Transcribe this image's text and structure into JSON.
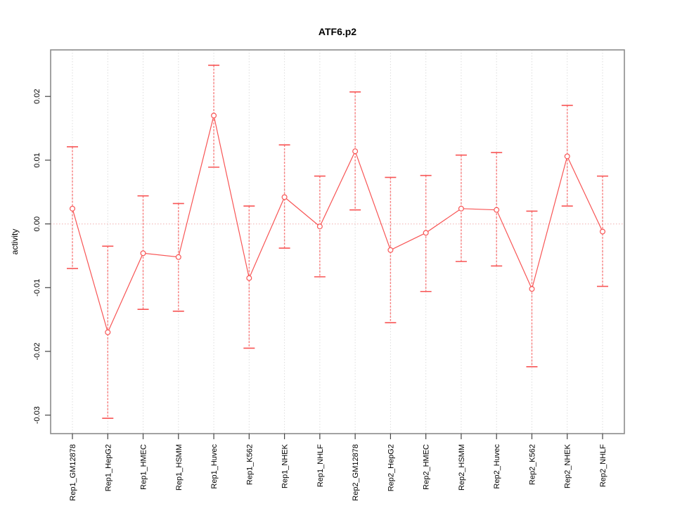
{
  "title": "ATF6.p2",
  "chart_data": {
    "type": "line",
    "subtype": "points-with-error-bars",
    "title": "ATF6.p2",
    "xlabel": "",
    "ylabel": "activity",
    "legend": null,
    "grid": "vertical-dashed-gridlines-plus-dotted-zero-line",
    "categories": [
      "Rep1_GM12878",
      "Rep1_HepG2",
      "Rep1_HMEC",
      "Rep1_HSMM",
      "Rep1_Huvec",
      "Rep1_K562",
      "Rep1_NHEK",
      "Rep1_NHLF",
      "Rep2_GM12878",
      "Rep2_HepG2",
      "Rep2_HMEC",
      "Rep2_HSMM",
      "Rep2_Huvec",
      "Rep2_K562",
      "Rep2_NHEK",
      "Rep2_NHLF"
    ],
    "series": [
      {
        "name": "activity",
        "values": [
          0.0024,
          -0.017,
          -0.0046,
          -0.0052,
          0.017,
          -0.0085,
          0.0042,
          -0.0004,
          0.0114,
          -0.0041,
          -0.0014,
          0.0024,
          0.0022,
          -0.0102,
          0.0106,
          -0.0012
        ],
        "error_high": [
          0.0121,
          -0.0035,
          0.0044,
          0.0032,
          0.0249,
          0.0028,
          0.0124,
          0.0075,
          0.0207,
          0.0073,
          0.0076,
          0.0108,
          0.0112,
          0.002,
          0.0186,
          0.0075
        ],
        "error_low": [
          -0.007,
          -0.0305,
          -0.0134,
          -0.0137,
          0.0089,
          -0.0195,
          -0.0038,
          -0.0083,
          0.0022,
          -0.0155,
          -0.0106,
          -0.0059,
          -0.0066,
          -0.0224,
          0.0028,
          -0.0098
        ]
      }
    ],
    "yticks": [
      {
        "value": 0.02,
        "label": "0.02"
      },
      {
        "value": 0.01,
        "label": "0.01"
      },
      {
        "value": 0.0,
        "label": "0.00"
      },
      {
        "value": -0.01,
        "label": "-0.01"
      },
      {
        "value": -0.02,
        "label": "-0.02"
      },
      {
        "value": -0.03,
        "label": "-0.03"
      }
    ],
    "ylim": [
      -0.0329,
      0.0273
    ],
    "zero_reference_line": 0.0,
    "colors": {
      "series": "#f85555",
      "error_bar": "#f87e7e",
      "marker_fill": "#ffffff",
      "zero_line": "#f3bebe",
      "grid": "#dcdcdc",
      "box": "#8c8c8c",
      "tick": "#444444",
      "text": "#000000"
    }
  }
}
